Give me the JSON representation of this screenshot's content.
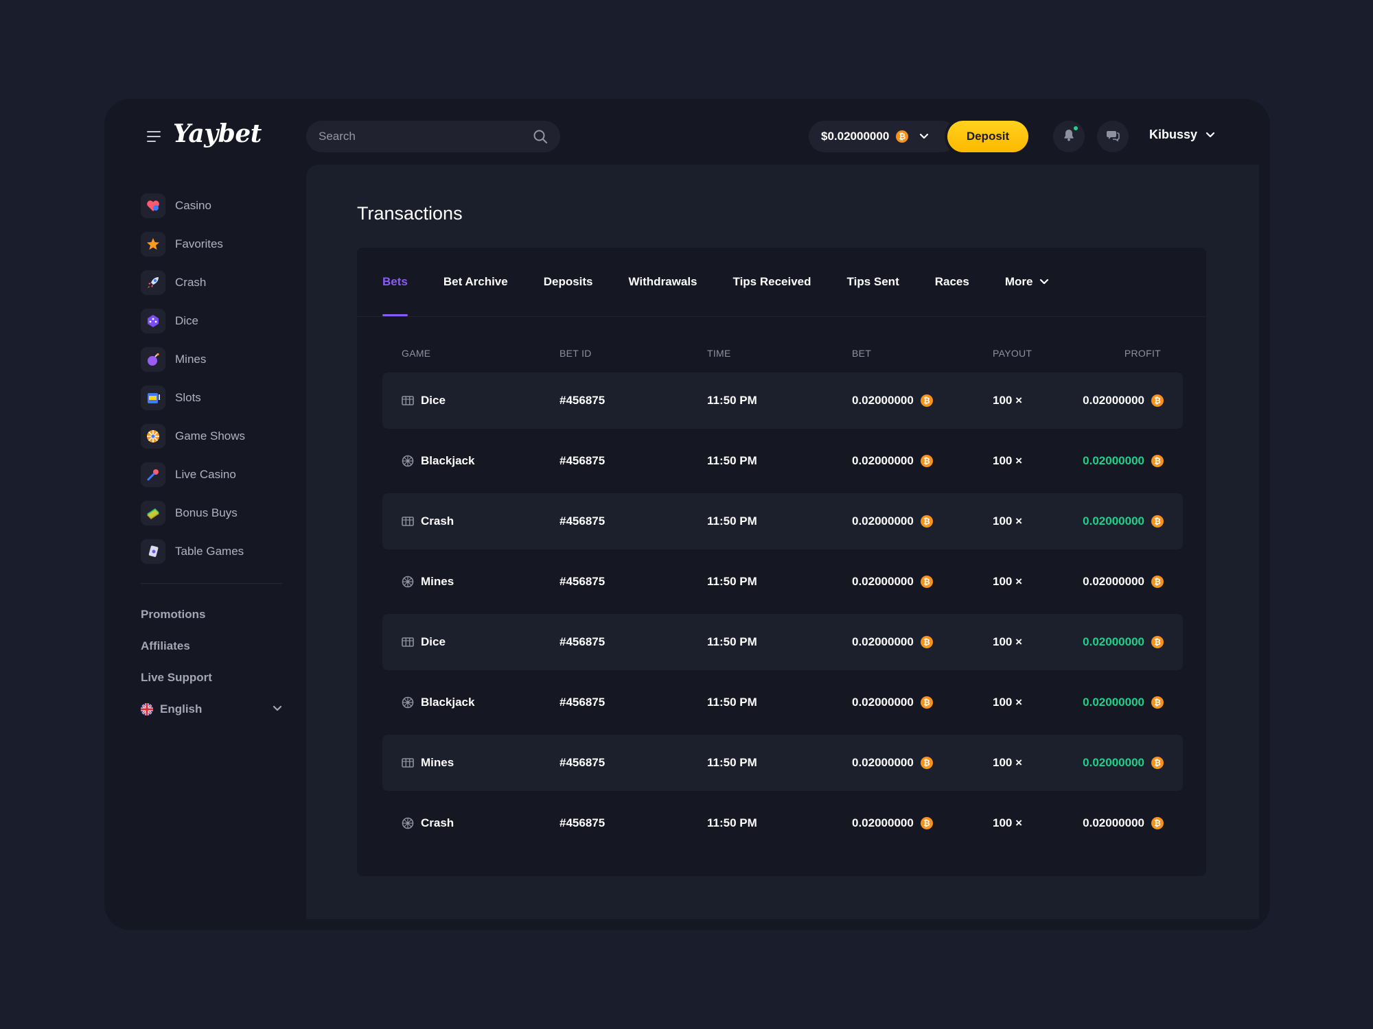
{
  "header": {
    "logo": "Yaybet",
    "search_placeholder": "Search",
    "balance": "$0.02000000",
    "deposit_label": "Deposit",
    "username": "Kibussy"
  },
  "sidebar": {
    "items": [
      {
        "label": "Casino",
        "icon": "heart-icon"
      },
      {
        "label": "Favorites",
        "icon": "star-icon"
      },
      {
        "label": "Crash",
        "icon": "rocket-icon"
      },
      {
        "label": "Dice",
        "icon": "dice-icon"
      },
      {
        "label": "Mines",
        "icon": "bomb-icon"
      },
      {
        "label": "Slots",
        "icon": "slot-machine-icon"
      },
      {
        "label": "Game Shows",
        "icon": "wheel-icon"
      },
      {
        "label": "Live Casino",
        "icon": "microphone-icon"
      },
      {
        "label": "Bonus Buys",
        "icon": "money-icon"
      },
      {
        "label": "Table Games",
        "icon": "cards-icon"
      }
    ],
    "links": [
      "Promotions",
      "Affiliates",
      "Live Support"
    ],
    "language": "English"
  },
  "page": {
    "title": "Transactions",
    "tabs": [
      "Bets",
      "Bet Archive",
      "Deposits",
      "Withdrawals",
      "Tips Received",
      "Tips Sent",
      "Races",
      "More"
    ],
    "active_tab": "Bets"
  },
  "table": {
    "headers": [
      "GAME",
      "BET ID",
      "TIME",
      "BET",
      "PAYOUT",
      "PROFIT"
    ],
    "rows": [
      {
        "game": "Dice",
        "icon": "slot-machine-icon",
        "bet_id": "#456875",
        "time": "11:50 PM",
        "bet": "0.02000000",
        "payout": "100 ×",
        "profit": "0.02000000",
        "profit_positive": false
      },
      {
        "game": "Blackjack",
        "icon": "roulette-icon",
        "bet_id": "#456875",
        "time": "11:50 PM",
        "bet": "0.02000000",
        "payout": "100 ×",
        "profit": "0.02000000",
        "profit_positive": true
      },
      {
        "game": "Crash",
        "icon": "slot-machine-icon",
        "bet_id": "#456875",
        "time": "11:50 PM",
        "bet": "0.02000000",
        "payout": "100 ×",
        "profit": "0.02000000",
        "profit_positive": true
      },
      {
        "game": "Mines",
        "icon": "roulette-icon",
        "bet_id": "#456875",
        "time": "11:50 PM",
        "bet": "0.02000000",
        "payout": "100 ×",
        "profit": "0.02000000",
        "profit_positive": false
      },
      {
        "game": "Dice",
        "icon": "slot-machine-icon",
        "bet_id": "#456875",
        "time": "11:50 PM",
        "bet": "0.02000000",
        "payout": "100 ×",
        "profit": "0.02000000",
        "profit_positive": true
      },
      {
        "game": "Blackjack",
        "icon": "roulette-icon",
        "bet_id": "#456875",
        "time": "11:50 PM",
        "bet": "0.02000000",
        "payout": "100 ×",
        "profit": "0.02000000",
        "profit_positive": true
      },
      {
        "game": "Mines",
        "icon": "slot-machine-icon",
        "bet_id": "#456875",
        "time": "11:50 PM",
        "bet": "0.02000000",
        "payout": "100 ×",
        "profit": "0.02000000",
        "profit_positive": true
      },
      {
        "game": "Crash",
        "icon": "roulette-icon",
        "bet_id": "#456875",
        "time": "11:50 PM",
        "bet": "0.02000000",
        "payout": "100 ×",
        "profit": "0.02000000",
        "profit_positive": false
      }
    ]
  },
  "colors": {
    "accent": "#8a5cf6",
    "positive": "#1fd18a",
    "deposit": "#ffc107",
    "bitcoin": "#f7931a"
  }
}
